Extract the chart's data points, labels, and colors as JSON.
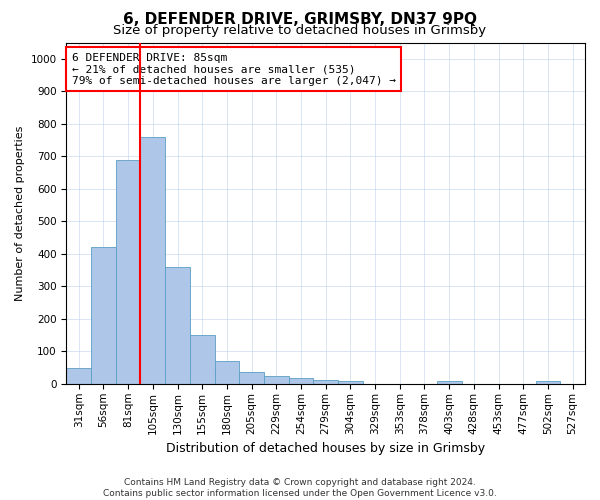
{
  "title": "6, DEFENDER DRIVE, GRIMSBY, DN37 9PQ",
  "subtitle": "Size of property relative to detached houses in Grimsby",
  "xlabel": "Distribution of detached houses by size in Grimsby",
  "ylabel": "Number of detached properties",
  "categories": [
    "31sqm",
    "56sqm",
    "81sqm",
    "105sqm",
    "130sqm",
    "155sqm",
    "180sqm",
    "205sqm",
    "229sqm",
    "254sqm",
    "279sqm",
    "304sqm",
    "329sqm",
    "353sqm",
    "378sqm",
    "403sqm",
    "428sqm",
    "453sqm",
    "477sqm",
    "502sqm",
    "527sqm"
  ],
  "values": [
    50,
    420,
    690,
    760,
    360,
    150,
    70,
    37,
    25,
    17,
    12,
    8,
    0,
    0,
    0,
    8,
    0,
    0,
    0,
    8,
    0
  ],
  "bar_color": "#aec6e8",
  "bar_edge_color": "#5a9fc5",
  "vline_x": 2.5,
  "vline_color": "red",
  "annotation_text": "6 DEFENDER DRIVE: 85sqm\n← 21% of detached houses are smaller (535)\n79% of semi-detached houses are larger (2,047) →",
  "annotation_box_color": "white",
  "annotation_box_edgecolor": "red",
  "ylim": [
    0,
    1050
  ],
  "yticks": [
    0,
    100,
    200,
    300,
    400,
    500,
    600,
    700,
    800,
    900,
    1000
  ],
  "footer_line1": "Contains HM Land Registry data © Crown copyright and database right 2024.",
  "footer_line2": "Contains public sector information licensed under the Open Government Licence v3.0.",
  "title_fontsize": 11,
  "subtitle_fontsize": 9.5,
  "xlabel_fontsize": 9,
  "ylabel_fontsize": 8,
  "tick_fontsize": 7.5,
  "annotation_fontsize": 8,
  "footer_fontsize": 6.5
}
